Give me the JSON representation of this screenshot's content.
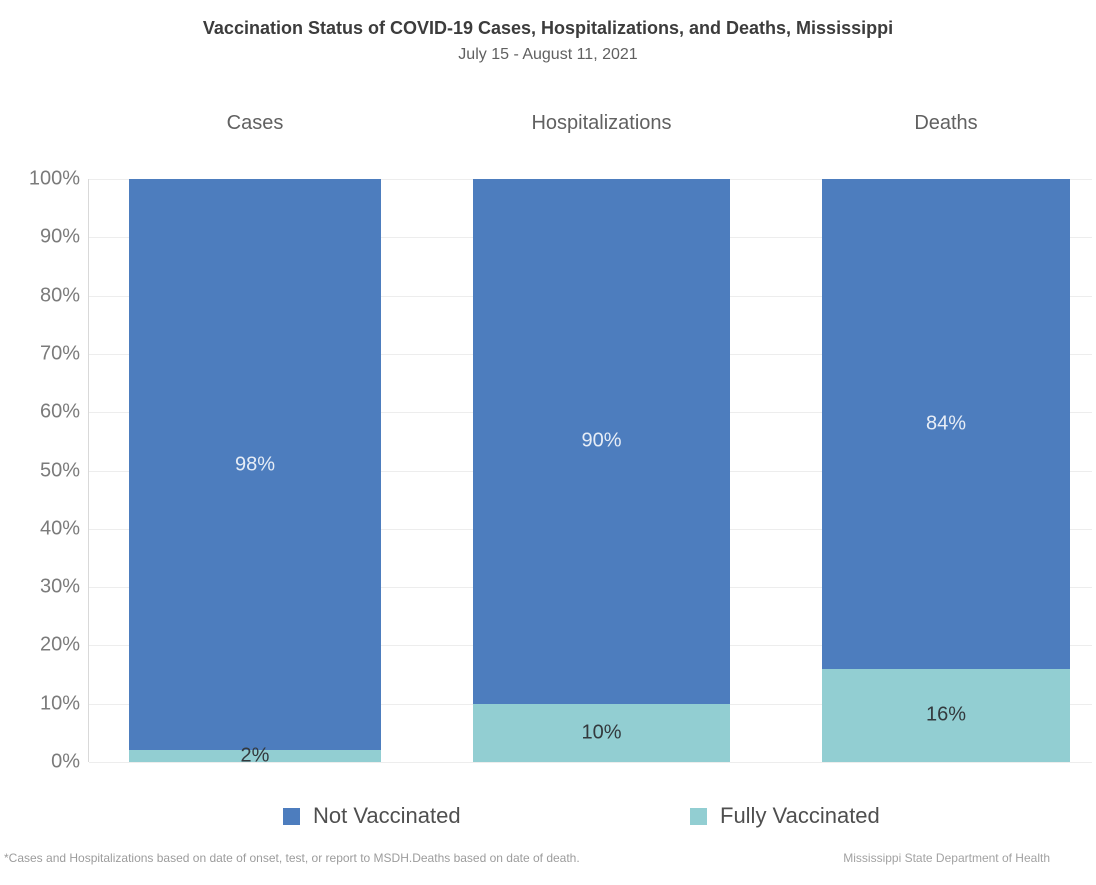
{
  "chart_data": {
    "type": "bar",
    "stacked": true,
    "orientation": "vertical",
    "title": "Vaccination Status of COVID-19 Cases, Hospitalizations, and Deaths, Mississippi",
    "subtitle": "July 15 - August 11, 2021",
    "categories": [
      "Cases",
      "Hospitalizations",
      "Deaths"
    ],
    "series": [
      {
        "name": "Not Vaccinated",
        "color": "#4d7dbe",
        "label_color": "#e7edf6",
        "values": [
          98,
          90,
          84
        ]
      },
      {
        "name": "Fully Vaccinated",
        "color": "#92ced2",
        "label_color": "#33393d",
        "values": [
          2,
          10,
          16
        ]
      }
    ],
    "value_suffix": "%",
    "ylim": [
      0,
      100
    ],
    "y_tick_interval": 10,
    "y_tick_labels": [
      "0%",
      "10%",
      "20%",
      "30%",
      "40%",
      "50%",
      "60%",
      "70%",
      "80%",
      "90%",
      "100%"
    ],
    "grid": true,
    "legend_position": "bottom",
    "footnote": "*Cases and Hospitalizations based on date of onset, test, or report to MSDH.Deaths based on date of death.",
    "source": "Mississippi State Department of Health"
  }
}
